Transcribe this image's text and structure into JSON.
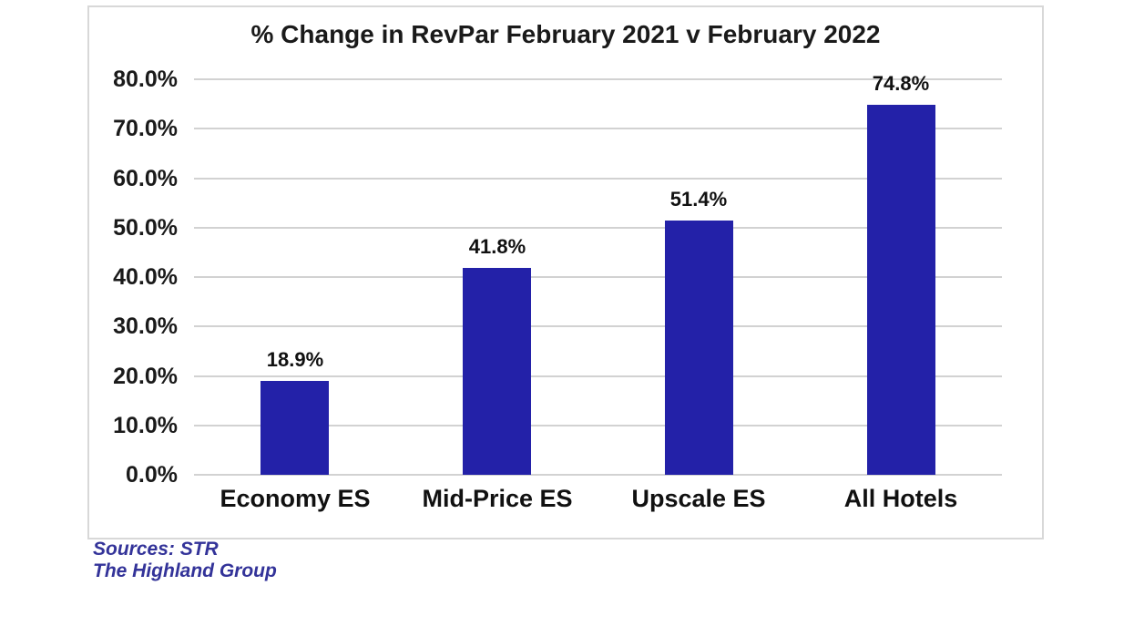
{
  "chart_data": {
    "type": "bar",
    "title": "% Change in RevPar February 2021 v February 2022",
    "categories": [
      "Economy ES",
      "Mid-Price ES",
      "Upscale ES",
      "All Hotels"
    ],
    "values": [
      18.9,
      41.8,
      51.4,
      74.8
    ],
    "value_labels": [
      "18.9%",
      "41.8%",
      "51.4%",
      "74.8%"
    ],
    "xlabel": "",
    "ylabel": "",
    "ylim": [
      0,
      80
    ],
    "ytick_step": 10,
    "ytick_labels": [
      "0.0%",
      "10.0%",
      "20.0%",
      "30.0%",
      "40.0%",
      "50.0%",
      "60.0%",
      "70.0%",
      "80.0%"
    ],
    "grid": true,
    "legend": false,
    "bar_color": "#2321A8",
    "gridline_color": "#D2D2D2",
    "axis_text_color": "#1a1a1a"
  },
  "footer": {
    "sources_line1": "Sources: STR",
    "sources_line2": "The Highland Group",
    "text_color": "#333399"
  }
}
